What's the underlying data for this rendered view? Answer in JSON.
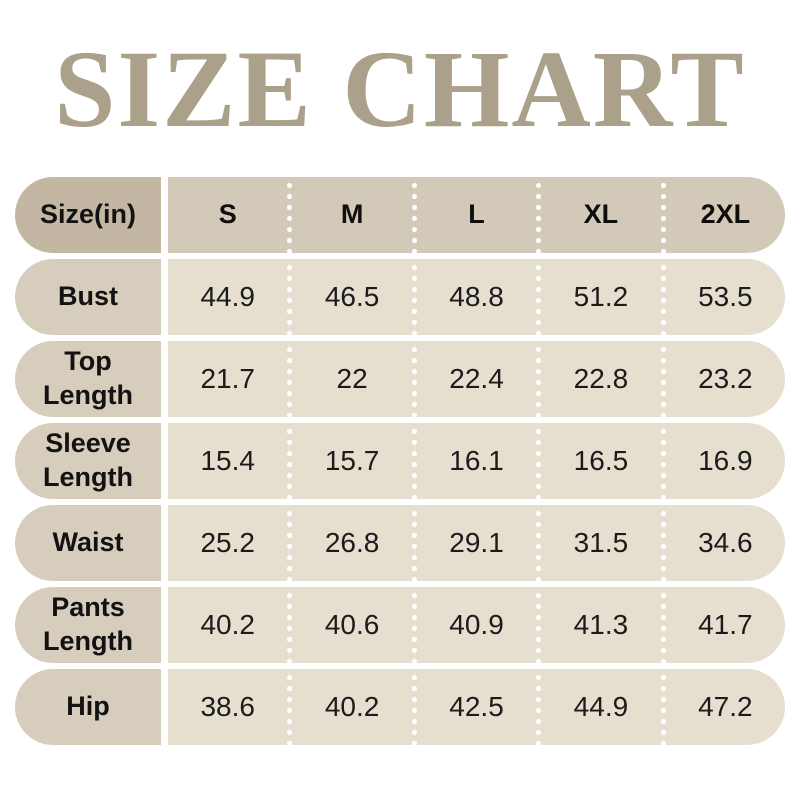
{
  "title": "SIZE CHART",
  "colors": {
    "title": "#aba089",
    "header_label_bg": "#c3b7a3",
    "header_data_bg": "#d2c9b8",
    "row_label_bg": "#d7cdbd",
    "row_data_bg": "#e6dfd0",
    "text": "#121212"
  },
  "table": {
    "unit_header": "Size(in)",
    "columns": [
      "S",
      "M",
      "L",
      "XL",
      "2XL"
    ],
    "rows": [
      {
        "label": "Bust",
        "values": [
          "44.9",
          "46.5",
          "48.8",
          "51.2",
          "53.5"
        ]
      },
      {
        "label": "Top Length",
        "values": [
          "21.7",
          "22",
          "22.4",
          "22.8",
          "23.2"
        ]
      },
      {
        "label": "Sleeve Length",
        "values": [
          "15.4",
          "15.7",
          "16.1",
          "16.5",
          "16.9"
        ]
      },
      {
        "label": "Waist",
        "values": [
          "25.2",
          "26.8",
          "29.1",
          "31.5",
          "34.6"
        ]
      },
      {
        "label": "Pants Length",
        "values": [
          "40.2",
          "40.6",
          "40.9",
          "41.3",
          "41.7"
        ]
      },
      {
        "label": "Hip",
        "values": [
          "38.6",
          "40.2",
          "42.5",
          "44.9",
          "47.2"
        ]
      }
    ]
  },
  "chart_data": {
    "type": "table",
    "title": "SIZE CHART",
    "columns": [
      "Size(in)",
      "S",
      "M",
      "L",
      "XL",
      "2XL"
    ],
    "rows": [
      [
        "Bust",
        "44.9",
        "46.5",
        "48.8",
        "51.2",
        "53.5"
      ],
      [
        "Top Length",
        "21.7",
        "22",
        "22.4",
        "22.8",
        "23.2"
      ],
      [
        "Sleeve Length",
        "15.4",
        "15.7",
        "16.1",
        "16.5",
        "16.9"
      ],
      [
        "Waist",
        "25.2",
        "26.8",
        "29.1",
        "31.5",
        "34.6"
      ],
      [
        "Pants Length",
        "40.2",
        "40.6",
        "40.9",
        "41.3",
        "41.7"
      ],
      [
        "Hip",
        "38.6",
        "40.2",
        "42.5",
        "44.9",
        "47.2"
      ]
    ]
  }
}
